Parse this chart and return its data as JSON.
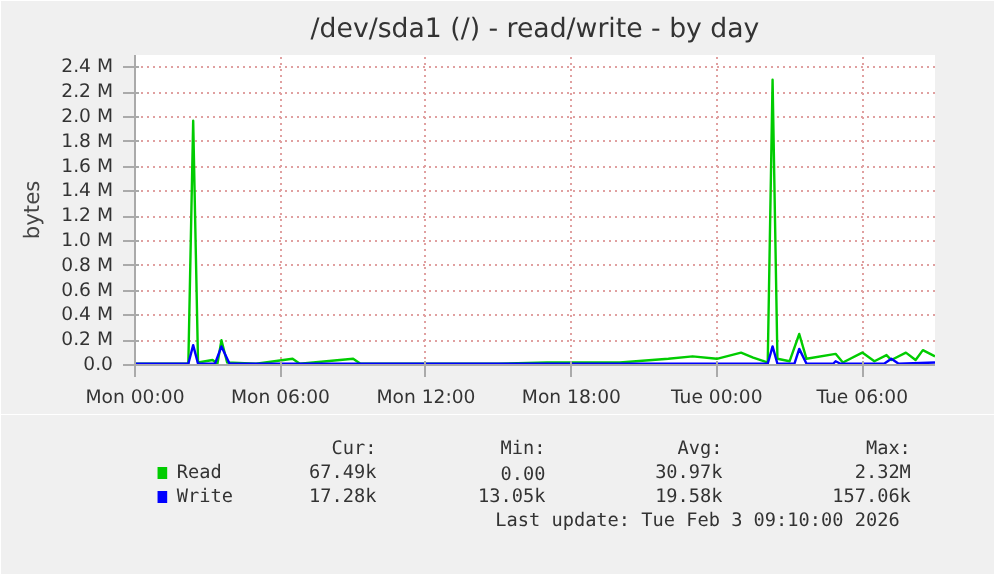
{
  "chart_data": {
    "type": "line",
    "title": "/dev/sda1 (/) - read/write - by day",
    "ylabel": "bytes",
    "xlim": [
      "2026-02-02T00:00",
      "2026-02-03T09:00"
    ],
    "ylim": [
      0,
      2.5
    ],
    "xticks": [
      {
        "value": "2026-02-02T00:00",
        "label": "Mon 00:00"
      },
      {
        "value": "2026-02-02T06:00",
        "label": "Mon 06:00"
      },
      {
        "value": "2026-02-02T12:00",
        "label": "Mon 12:00"
      },
      {
        "value": "2026-02-02T18:00",
        "label": "Mon 18:00"
      },
      {
        "value": "2026-02-03T00:00",
        "label": "Tue 00:00"
      },
      {
        "value": "2026-02-03T06:00",
        "label": "Tue 06:00"
      }
    ],
    "yticks": [
      {
        "value": 0,
        "label": "0.0"
      },
      {
        "value": 0.2,
        "label": "0.2 M"
      },
      {
        "value": 0.4,
        "label": "0.4 M"
      },
      {
        "value": 0.6,
        "label": "0.6 M"
      },
      {
        "value": 0.8,
        "label": "0.8 M"
      },
      {
        "value": 1.0,
        "label": "1.0 M"
      },
      {
        "value": 1.2,
        "label": "1.2 M"
      },
      {
        "value": 1.4,
        "label": "1.4 M"
      },
      {
        "value": 1.6,
        "label": "1.6 M"
      },
      {
        "value": 1.8,
        "label": "1.8 M"
      },
      {
        "value": 2.0,
        "label": "2.0 M"
      },
      {
        "value": 2.2,
        "label": "2.2 M"
      },
      {
        "value": 2.4,
        "label": "2.4 M"
      }
    ],
    "grid": true,
    "legend": "bottom",
    "series": [
      {
        "name": "Read",
        "color": "#00cc00",
        "x": [
          "2026-02-02T00:00",
          "2026-02-02T02:12",
          "2026-02-02T02:24",
          "2026-02-02T02:36",
          "2026-02-02T03:12",
          "2026-02-02T03:24",
          "2026-02-02T03:34",
          "2026-02-02T03:48",
          "2026-02-02T05:00",
          "2026-02-02T06:30",
          "2026-02-02T06:48",
          "2026-02-02T09:00",
          "2026-02-02T09:18",
          "2026-02-02T12:00",
          "2026-02-02T15:00",
          "2026-02-02T17:00",
          "2026-02-02T20:00",
          "2026-02-02T22:00",
          "2026-02-02T23:00",
          "2026-02-03T00:00",
          "2026-02-03T01:00",
          "2026-02-03T01:30",
          "2026-02-03T02:06",
          "2026-02-03T02:18",
          "2026-02-03T02:30",
          "2026-02-03T03:00",
          "2026-02-03T03:24",
          "2026-02-03T03:42",
          "2026-02-03T04:54",
          "2026-02-03T05:12",
          "2026-02-03T06:00",
          "2026-02-03T06:30",
          "2026-02-03T07:00",
          "2026-02-03T07:12",
          "2026-02-03T07:48",
          "2026-02-03T08:12",
          "2026-02-03T08:30",
          "2026-02-03T09:00"
        ],
        "values": [
          0.01,
          0.01,
          1.97,
          0.02,
          0.04,
          0.01,
          0.2,
          0.02,
          0.01,
          0.05,
          0.01,
          0.05,
          0.01,
          0.01,
          0.01,
          0.02,
          0.02,
          0.05,
          0.07,
          0.05,
          0.1,
          0.06,
          0.02,
          2.3,
          0.05,
          0.03,
          0.25,
          0.05,
          0.09,
          0.02,
          0.1,
          0.03,
          0.08,
          0.04,
          0.1,
          0.04,
          0.12,
          0.07
        ]
      },
      {
        "name": "Write",
        "color": "#0000ff",
        "x": [
          "2026-02-02T00:00",
          "2026-02-02T02:12",
          "2026-02-02T02:24",
          "2026-02-02T02:36",
          "2026-02-02T03:18",
          "2026-02-02T03:34",
          "2026-02-02T03:54",
          "2026-02-03T02:06",
          "2026-02-03T02:18",
          "2026-02-03T02:30",
          "2026-02-03T03:12",
          "2026-02-03T03:24",
          "2026-02-03T03:42",
          "2026-02-03T04:48",
          "2026-02-03T04:54",
          "2026-02-03T05:06",
          "2026-02-03T06:54",
          "2026-02-03T07:12",
          "2026-02-03T07:30",
          "2026-02-03T09:00"
        ],
        "values": [
          0.01,
          0.01,
          0.16,
          0.01,
          0.01,
          0.15,
          0.01,
          0.01,
          0.15,
          0.01,
          0.01,
          0.13,
          0.01,
          0.01,
          0.03,
          0.01,
          0.01,
          0.05,
          0.01,
          0.02
        ]
      }
    ],
    "annotations": [
      "Cur:",
      "Min:",
      "Avg:",
      "Max:",
      "67.49k",
      "0.00",
      "30.97k",
      "2.32M",
      "17.28k",
      "13.05k",
      "19.58k",
      "157.06k",
      "Last update: Tue Feb  3 09:10:00 2026"
    ]
  }
}
